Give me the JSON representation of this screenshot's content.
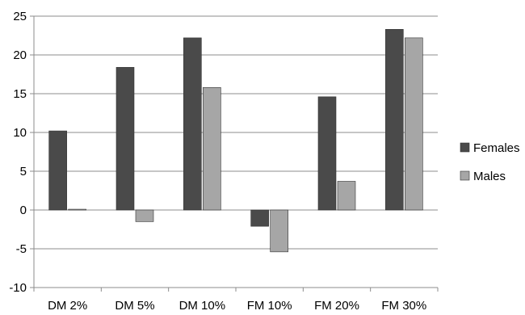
{
  "chart_data": {
    "type": "bar",
    "categories": [
      "DM 2%",
      "DM 5%",
      "DM 10%",
      "FM 10%",
      "FM 20%",
      "FM 30%"
    ],
    "series": [
      {
        "name": "Females",
        "values": [
          10.2,
          18.4,
          22.2,
          -2.1,
          14.6,
          23.3
        ],
        "color": "#4a4a4a"
      },
      {
        "name": "Males",
        "values": [
          0.1,
          -1.5,
          15.8,
          -5.4,
          3.7,
          22.2
        ],
        "color": "#a6a6a6"
      }
    ],
    "ylim": [
      -10,
      25
    ],
    "yticks": [
      -10,
      -5,
      0,
      5,
      10,
      15,
      20,
      25
    ],
    "ytick_labels": [
      "-10",
      "-5",
      "0",
      "5",
      "10",
      "15",
      "20",
      "25"
    ],
    "grid": true,
    "legend": "right",
    "title": "",
    "xlabel": "",
    "ylabel": ""
  }
}
